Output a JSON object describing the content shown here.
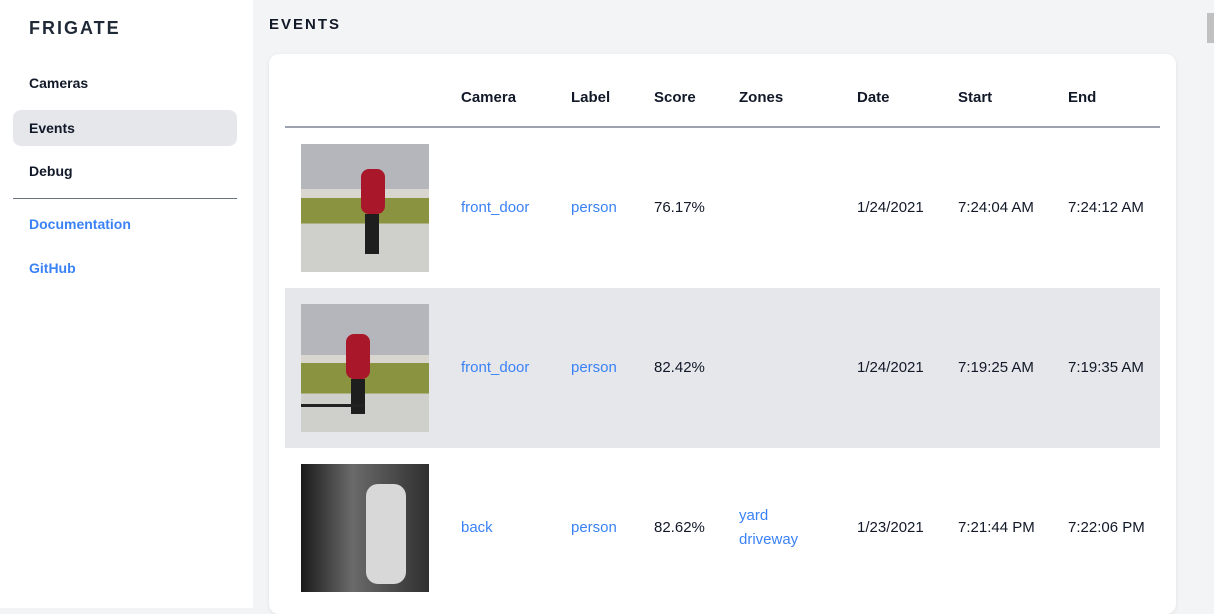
{
  "sidebar": {
    "brand": "FRIGATE",
    "items": [
      {
        "label": "Cameras"
      },
      {
        "label": "Events",
        "active": true
      },
      {
        "label": "Debug"
      }
    ],
    "links": [
      {
        "label": "Documentation"
      },
      {
        "label": "GitHub"
      }
    ]
  },
  "page": {
    "title": "EVENTS"
  },
  "table": {
    "headers": [
      "Camera",
      "Label",
      "Score",
      "Zones",
      "Date",
      "Start",
      "End"
    ],
    "rows": [
      {
        "camera": "front_door",
        "label": "person",
        "score": "76.17%",
        "zones": [
          "",
          ""
        ],
        "date": "1/24/2021",
        "start": "7:24:04 AM",
        "end": "7:24:12 AM"
      },
      {
        "camera": "front_door",
        "label": "person",
        "score": "82.42%",
        "zones": [
          "",
          ""
        ],
        "date": "1/24/2021",
        "start": "7:19:25 AM",
        "end": "7:19:35 AM"
      },
      {
        "camera": "back",
        "label": "person",
        "score": "82.62%",
        "zones": [
          "yard",
          "driveway"
        ],
        "date": "1/23/2021",
        "start": "7:21:44 PM",
        "end": "7:22:06 PM"
      }
    ]
  },
  "colors": {
    "accent": "#3b82f6",
    "active_bg": "#e5e7eb"
  }
}
